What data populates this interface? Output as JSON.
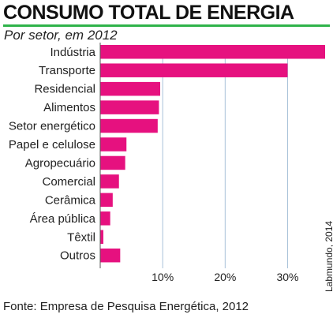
{
  "header": {
    "title": "CONSUMO TOTAL DE ENERGIA",
    "subtitle": "Por setor, em 2012"
  },
  "footer": {
    "source": "Fonte: Empresa de Pesquisa Energética, 2012",
    "credit": "Labmundo, 2014"
  },
  "colors": {
    "bar": "#e6117f",
    "grid": "#a9c2d9",
    "rule": "#2fb34a"
  },
  "chart_data": {
    "type": "bar",
    "orientation": "horizontal",
    "title": "CONSUMO TOTAL DE ENERGIA",
    "subtitle": "Por setor, em 2012",
    "categories": [
      "Indústria",
      "Transporte",
      "Residencial",
      "Alimentos",
      "Setor energético",
      "Papel e celulose",
      "Agropecuário",
      "Comercial",
      "Cerâmica",
      "Área pública",
      "Têxtil",
      "Outros"
    ],
    "values": [
      36.0,
      30.0,
      9.6,
      9.4,
      9.2,
      4.2,
      4.0,
      3.0,
      2.0,
      1.6,
      0.5,
      3.2
    ],
    "unit": "%",
    "xlim": [
      0,
      36
    ],
    "ticks": [
      10,
      20,
      30
    ],
    "tick_labels": [
      "10%",
      "20%",
      "30%"
    ],
    "grid": true
  }
}
